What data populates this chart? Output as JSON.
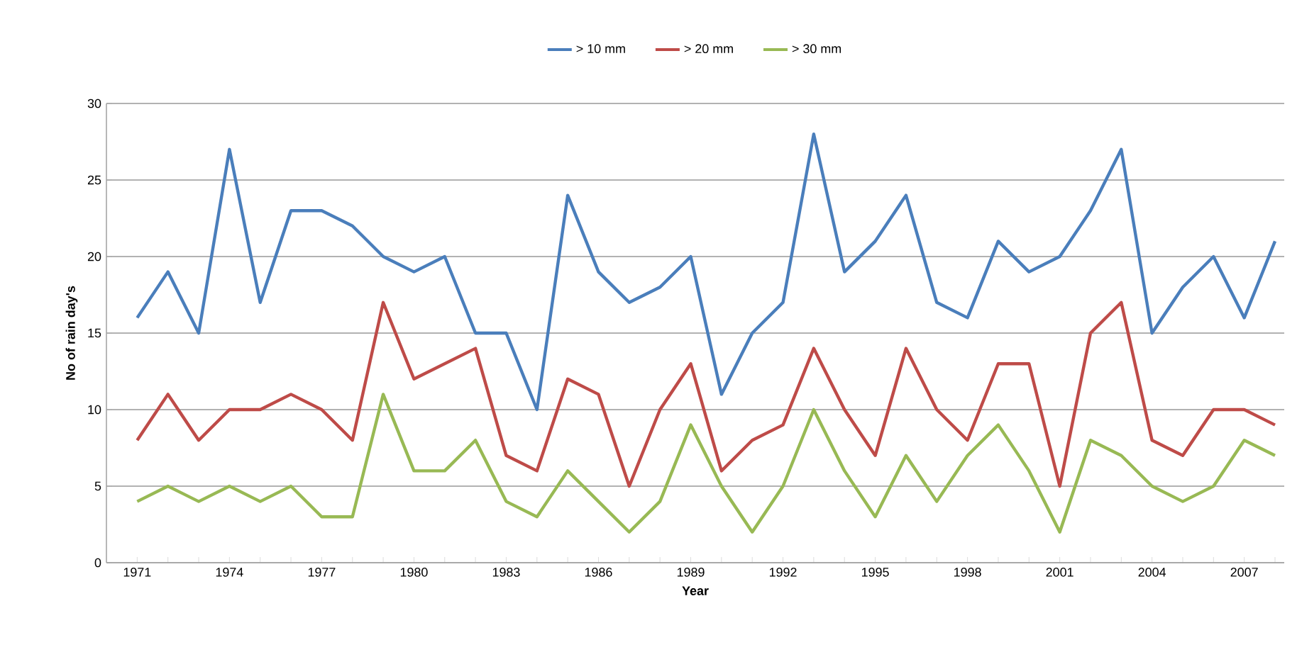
{
  "chart_data": {
    "type": "line",
    "xlabel": "Year",
    "ylabel": "No of rain day's",
    "categories": [
      "1971",
      null,
      null,
      "1974",
      null,
      null,
      "1977",
      null,
      null,
      "1980",
      null,
      null,
      "1983",
      null,
      null,
      "1986",
      null,
      null,
      "1989",
      null,
      null,
      "1992",
      null,
      null,
      "1995",
      null,
      null,
      "1998",
      null,
      null,
      "2001",
      null,
      null,
      "2004",
      null,
      null,
      "2007",
      null
    ],
    "series": [
      {
        "name": "> 10 mm",
        "color": "#4a7ebb",
        "values": [
          16,
          19,
          15,
          27,
          17,
          23,
          23,
          22,
          20,
          19,
          20,
          15,
          15,
          10,
          24,
          19,
          17,
          18,
          20,
          11,
          15,
          17,
          28,
          19,
          21,
          24,
          17,
          16,
          21,
          19,
          20,
          23,
          27,
          15,
          18,
          20,
          16,
          21
        ]
      },
      {
        "name": "> 20 mm",
        "color": "#be4b48",
        "values": [
          8,
          11,
          8,
          10,
          10,
          11,
          10,
          8,
          17,
          12,
          13,
          14,
          7,
          6,
          12,
          11,
          5,
          10,
          13,
          6,
          8,
          9,
          14,
          10,
          7,
          14,
          10,
          8,
          13,
          13,
          5,
          15,
          17,
          8,
          7,
          10,
          10,
          9
        ]
      },
      {
        "name": "> 30 mm",
        "color": "#98b954",
        "values": [
          4,
          5,
          4,
          5,
          4,
          5,
          3,
          3,
          11,
          6,
          6,
          8,
          4,
          3,
          6,
          4,
          2,
          4,
          9,
          5,
          2,
          5,
          10,
          6,
          3,
          7,
          4,
          7,
          9,
          6,
          2,
          8,
          7,
          5,
          4,
          5,
          8,
          7
        ]
      }
    ],
    "ylim": [
      0,
      30
    ],
    "yticks": [
      0,
      5,
      10,
      15,
      20,
      25,
      30
    ],
    "grid": "y",
    "legend": "top",
    "marker": "none",
    "line_style": "solid"
  }
}
